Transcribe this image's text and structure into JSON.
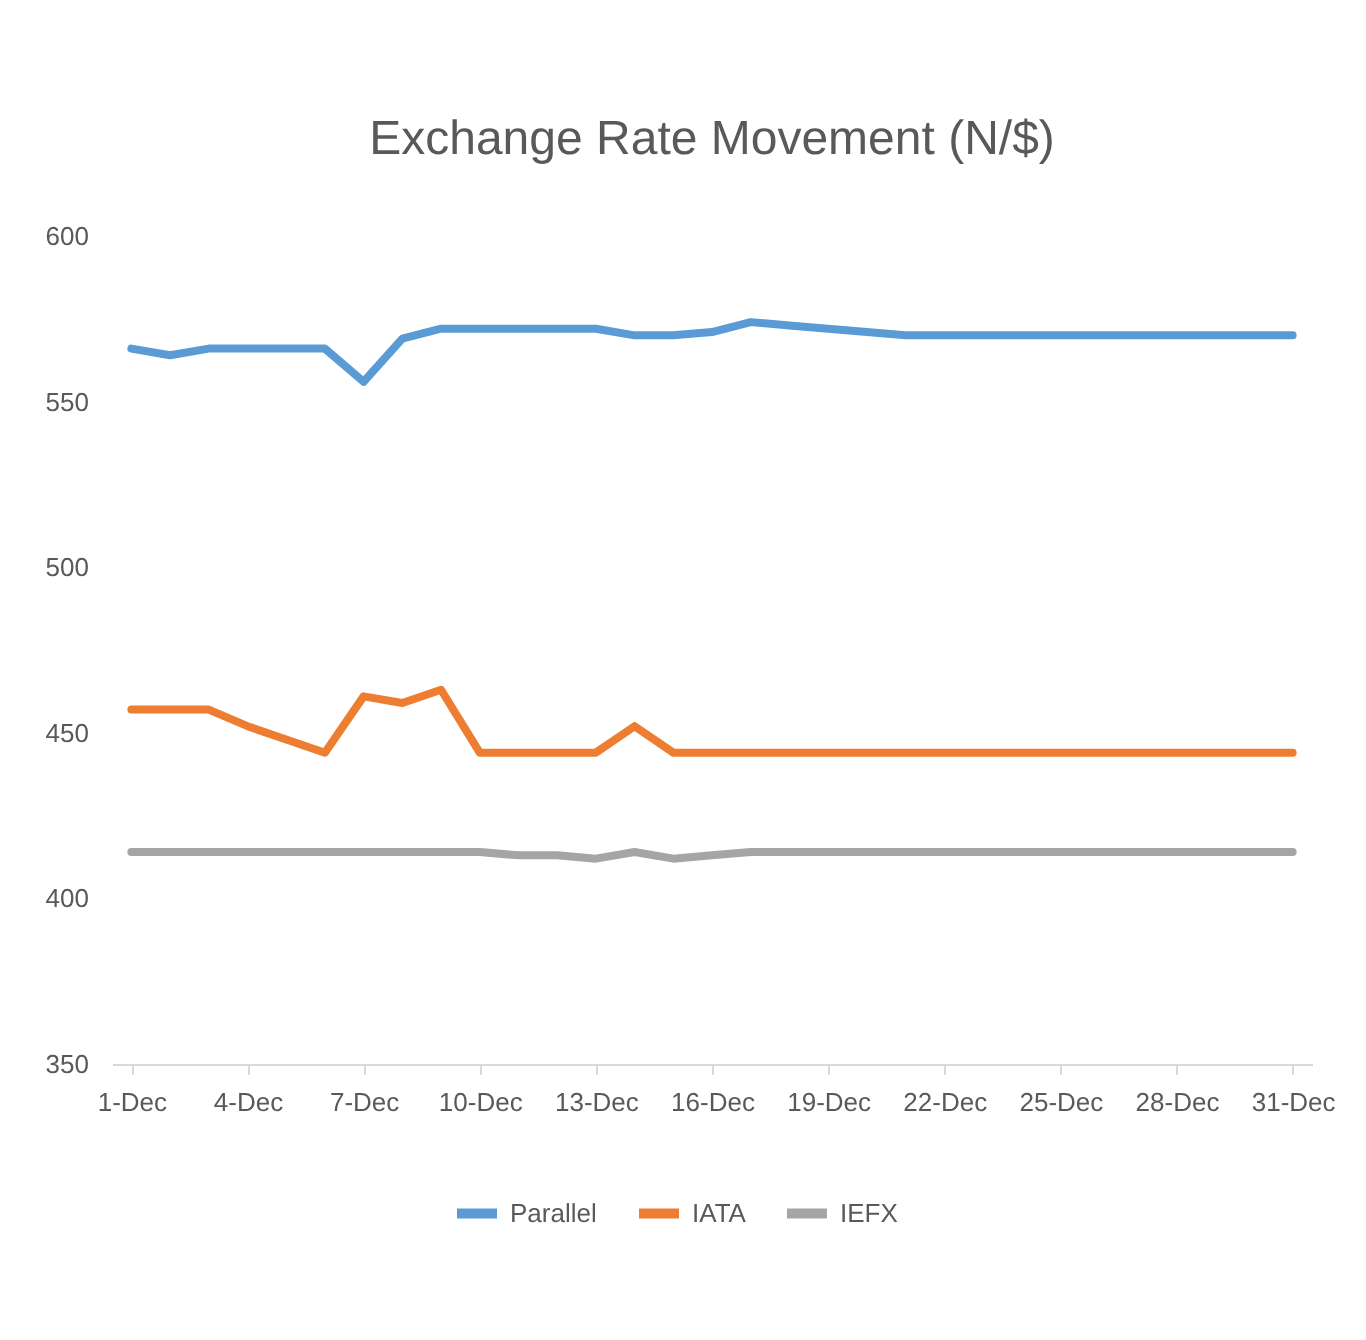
{
  "chart_data": {
    "type": "line",
    "title": "Exchange Rate Movement (N/$)",
    "categories": [
      "1-Dec",
      null,
      null,
      "4-Dec",
      null,
      null,
      "7-Dec",
      null,
      null,
      "10-Dec",
      null,
      null,
      "13-Dec",
      null,
      null,
      "16-Dec",
      null,
      null,
      "19-Dec",
      null,
      null,
      "22-Dec",
      null,
      null,
      "25-Dec",
      null,
      null,
      "28-Dec",
      null,
      null,
      "31-Dec"
    ],
    "series": [
      {
        "name": "Parallel",
        "color": "#5b9bd5",
        "values": [
          566,
          564,
          566,
          566,
          566,
          566,
          556,
          569,
          572,
          572,
          572,
          572,
          572,
          570,
          570,
          571,
          574,
          573,
          572,
          571,
          570,
          570,
          570,
          570,
          570,
          570,
          570,
          570,
          570,
          570,
          570
        ]
      },
      {
        "name": "IATA",
        "color": "#ed7d31",
        "values": [
          457,
          457,
          457,
          452,
          448,
          444,
          461,
          459,
          463,
          444,
          444,
          444,
          444,
          452,
          444,
          444,
          444,
          444,
          444,
          444,
          444,
          444,
          444,
          444,
          444,
          444,
          444,
          444,
          444,
          444,
          444
        ]
      },
      {
        "name": "IEFX",
        "color": "#a5a5a5",
        "values": [
          414,
          414,
          414,
          414,
          414,
          414,
          414,
          414,
          414,
          414,
          413,
          413,
          412,
          414,
          412,
          413,
          414,
          414,
          414,
          414,
          414,
          414,
          414,
          414,
          414,
          414,
          414,
          414,
          414,
          414,
          414
        ]
      }
    ],
    "ylim": [
      350,
      600
    ],
    "yticks": [
      350,
      400,
      450,
      500,
      550,
      600
    ],
    "grid": false,
    "legend": "bottom",
    "line_style": "solid",
    "marker": "none"
  }
}
